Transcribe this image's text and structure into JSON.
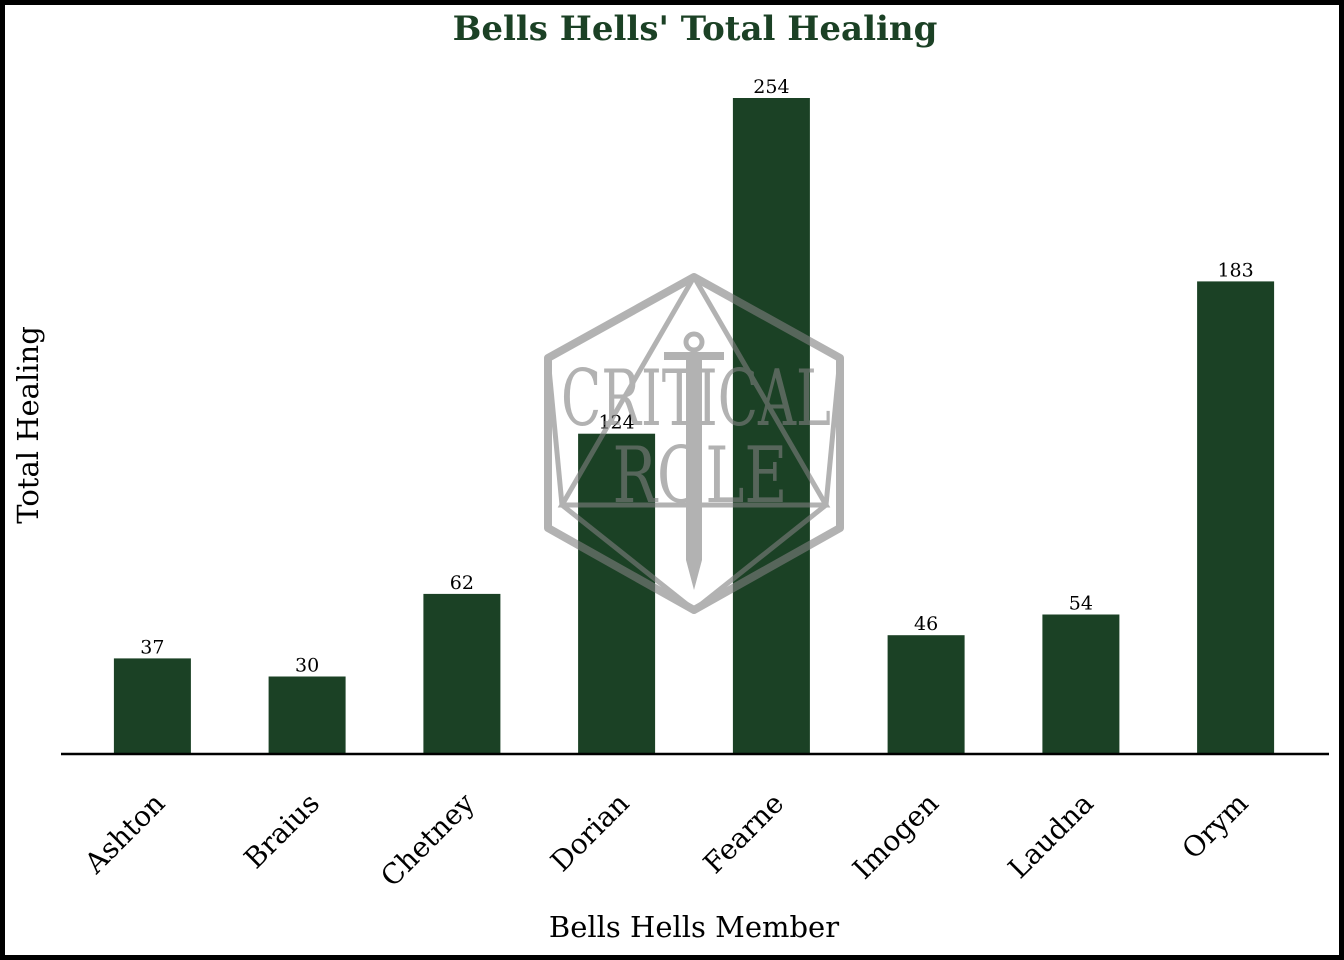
{
  "colors": {
    "bar": "#1b4125",
    "title": "#1b4125",
    "axis": "#000000",
    "watermark": "#808080"
  },
  "watermark": {
    "name": "critical-role-logo",
    "line1": "CRITICAL",
    "line2": "ROLE"
  },
  "chart_data": {
    "type": "bar",
    "title": "Bells Hells' Total Healing",
    "xlabel": "Bells Hells Member",
    "ylabel": "Total Healing",
    "categories": [
      "Ashton",
      "Braius",
      "Chetney",
      "Dorian",
      "Fearne",
      "Imogen",
      "Laudna",
      "Orym"
    ],
    "values": [
      37,
      30,
      62,
      124,
      254,
      46,
      54,
      183
    ],
    "data_labels": [
      "37",
      "30",
      "62",
      "124",
      "254",
      "46",
      "54",
      "183"
    ],
    "ylim": [
      0,
      254
    ],
    "grid": false,
    "legend": "none"
  }
}
